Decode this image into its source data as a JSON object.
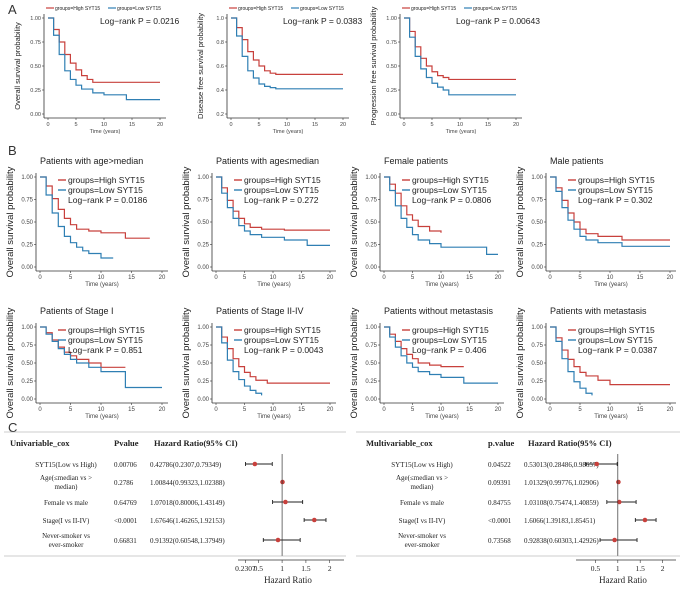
{
  "panel_labels": [
    "A",
    "B",
    "C"
  ],
  "colors": {
    "high": "#c8403c",
    "low": "#2f7fb3",
    "forest_dot": "#c8403c",
    "ci_line": "#222222"
  },
  "legend": {
    "high": "groups=High SYT15",
    "low": "groups=Low SYT15"
  },
  "xlabel": "Time (years)",
  "chart_data": [
    {
      "type": "line",
      "panel": "A",
      "ylabel": "Overall survival probability",
      "pvalue": "Log−rank P = 0.0216",
      "xticks": [
        "0",
        "5",
        "10",
        "15",
        "20"
      ],
      "yticks": [
        "0.00",
        "0.25",
        "0.50",
        "0.75",
        "1.00"
      ],
      "xlim": [
        0,
        20
      ],
      "ylim": [
        0,
        1
      ],
      "series": [
        {
          "name": "groups=High SYT15",
          "x": [
            0,
            1,
            2,
            3,
            4,
            5,
            6,
            7,
            8,
            10,
            13,
            20
          ],
          "y": [
            1,
            0.88,
            0.75,
            0.62,
            0.53,
            0.46,
            0.4,
            0.36,
            0.33,
            0.33,
            0.33,
            0.33
          ]
        },
        {
          "name": "groups=Low SYT15",
          "x": [
            0,
            1,
            2,
            3,
            4,
            5,
            6,
            8,
            10,
            14,
            20
          ],
          "y": [
            1,
            0.82,
            0.62,
            0.45,
            0.36,
            0.3,
            0.26,
            0.22,
            0.2,
            0.15,
            0.15
          ]
        }
      ]
    },
    {
      "type": "line",
      "panel": "A",
      "ylabel": "Disease free survival probability",
      "pvalue": "Log−rank P = 0.0383",
      "xticks": [
        "0",
        "5",
        "10",
        "15",
        "20"
      ],
      "yticks": [
        "0.2",
        "0.4",
        "0.6",
        "0.8",
        "1.0"
      ],
      "xlim": [
        0,
        20
      ],
      "ylim": [
        0.2,
        1
      ],
      "series": [
        {
          "name": "groups=High SYT15",
          "x": [
            0,
            1,
            2,
            3,
            4,
            5,
            6,
            7,
            8,
            10,
            20
          ],
          "y": [
            1,
            0.92,
            0.82,
            0.72,
            0.65,
            0.6,
            0.56,
            0.54,
            0.53,
            0.53,
            0.53
          ]
        },
        {
          "name": "groups=Low SYT15",
          "x": [
            0,
            1,
            2,
            3,
            4,
            5,
            6,
            7,
            8,
            10,
            20
          ],
          "y": [
            1,
            0.85,
            0.68,
            0.56,
            0.5,
            0.45,
            0.43,
            0.42,
            0.41,
            0.41,
            0.41
          ]
        }
      ]
    },
    {
      "type": "line",
      "panel": "A",
      "ylabel": "Progression free survival probability",
      "pvalue": "Log−rank P = 0.00643",
      "xticks": [
        "0",
        "5",
        "10",
        "15",
        "20"
      ],
      "yticks": [
        "0.00",
        "0.25",
        "0.50",
        "0.75",
        "1.00"
      ],
      "xlim": [
        0,
        20
      ],
      "ylim": [
        0,
        1
      ],
      "series": [
        {
          "name": "groups=High SYT15",
          "x": [
            0,
            1,
            2,
            3,
            4,
            5,
            6,
            7,
            8,
            12,
            20
          ],
          "y": [
            1,
            0.86,
            0.7,
            0.58,
            0.5,
            0.44,
            0.4,
            0.38,
            0.36,
            0.36,
            0.36
          ]
        },
        {
          "name": "groups=Low SYT15",
          "x": [
            0,
            1,
            2,
            3,
            4,
            5,
            6,
            7,
            8,
            12,
            20
          ],
          "y": [
            1,
            0.8,
            0.6,
            0.47,
            0.38,
            0.32,
            0.28,
            0.25,
            0.2,
            0.2,
            0.2
          ]
        }
      ]
    },
    {
      "type": "line",
      "panel": "B",
      "title": "Patients with age>median",
      "ylabel": "Overall survival probability",
      "pvalue": "Log−rank P = 0.0186",
      "xticks": [
        "0",
        "5",
        "10",
        "15",
        "20"
      ],
      "yticks": [
        "0.00",
        "0.25",
        "0.50",
        "0.75",
        "1.00"
      ],
      "xlim": [
        0,
        20
      ],
      "ylim": [
        0,
        1
      ],
      "series": [
        {
          "name": "groups=High SYT15",
          "x": [
            0,
            1,
            2,
            3,
            4,
            5,
            6,
            8,
            10,
            14,
            18
          ],
          "y": [
            1,
            0.9,
            0.76,
            0.64,
            0.54,
            0.47,
            0.42,
            0.4,
            0.38,
            0.32,
            0.32
          ]
        },
        {
          "name": "groups=Low SYT15",
          "x": [
            0,
            1,
            2,
            3,
            4,
            5,
            6,
            7,
            8,
            10,
            12
          ],
          "y": [
            1,
            0.8,
            0.6,
            0.45,
            0.34,
            0.27,
            0.22,
            0.18,
            0.15,
            0.1,
            0.1
          ]
        }
      ]
    },
    {
      "type": "line",
      "panel": "B",
      "title": "Patients with age≤median",
      "ylabel": "Overall survival probability",
      "pvalue": "Log−rank P = 0.272",
      "xticks": [
        "0",
        "5",
        "10",
        "15",
        "20"
      ],
      "yticks": [
        "0.00",
        "0.25",
        "0.50",
        "0.75",
        "1.00"
      ],
      "xlim": [
        0,
        20
      ],
      "ylim": [
        0,
        1
      ],
      "series": [
        {
          "name": "groups=High SYT15",
          "x": [
            0,
            1,
            2,
            3,
            4,
            5,
            6,
            8,
            12,
            20
          ],
          "y": [
            1,
            0.88,
            0.74,
            0.62,
            0.54,
            0.48,
            0.44,
            0.42,
            0.41,
            0.41
          ]
        },
        {
          "name": "groups=Low SYT15",
          "x": [
            0,
            1,
            2,
            3,
            4,
            5,
            6,
            8,
            12,
            16,
            20
          ],
          "y": [
            1,
            0.82,
            0.66,
            0.54,
            0.46,
            0.4,
            0.36,
            0.33,
            0.3,
            0.24,
            0.24
          ]
        }
      ]
    },
    {
      "type": "line",
      "panel": "B",
      "title": "Female patients",
      "ylabel": "Overall survival probability",
      "pvalue": "Log−rank P = 0.0806",
      "xticks": [
        "0",
        "5",
        "10",
        "15",
        "20"
      ],
      "yticks": [
        "0.00",
        "0.25",
        "0.50",
        "0.75",
        "1.00"
      ],
      "xlim": [
        0,
        20
      ],
      "ylim": [
        0,
        1
      ],
      "series": [
        {
          "name": "groups=High SYT15",
          "x": [
            0,
            1,
            2,
            3,
            4,
            5,
            6,
            8,
            10
          ],
          "y": [
            1,
            0.92,
            0.82,
            0.68,
            0.58,
            0.52,
            0.45,
            0.4,
            0.38
          ]
        },
        {
          "name": "groups=Low SYT15",
          "x": [
            0,
            1,
            2,
            3,
            4,
            5,
            6,
            8,
            10,
            18,
            20
          ],
          "y": [
            1,
            0.85,
            0.68,
            0.54,
            0.44,
            0.36,
            0.3,
            0.26,
            0.22,
            0.14,
            0.14
          ]
        }
      ]
    },
    {
      "type": "line",
      "panel": "B",
      "title": "Male patients",
      "ylabel": "Overall survival probability",
      "pvalue": "Log−rank P = 0.302",
      "xticks": [
        "0",
        "5",
        "10",
        "15",
        "20"
      ],
      "yticks": [
        "0.00",
        "0.25",
        "0.50",
        "0.75",
        "1.00"
      ],
      "xlim": [
        0,
        20
      ],
      "ylim": [
        0,
        1
      ],
      "series": [
        {
          "name": "groups=High SYT15",
          "x": [
            0,
            1,
            2,
            3,
            4,
            5,
            6,
            8,
            12,
            20
          ],
          "y": [
            1,
            0.88,
            0.74,
            0.6,
            0.5,
            0.42,
            0.37,
            0.34,
            0.3,
            0.3
          ]
        },
        {
          "name": "groups=Low SYT15",
          "x": [
            0,
            1,
            2,
            3,
            4,
            5,
            6,
            8,
            12,
            20
          ],
          "y": [
            1,
            0.84,
            0.66,
            0.52,
            0.42,
            0.34,
            0.3,
            0.27,
            0.23,
            0.23
          ]
        }
      ]
    },
    {
      "type": "line",
      "panel": "B",
      "title": "Patients of Stage I",
      "ylabel": "Overall survival probability",
      "pvalue": "Log−rank P = 0.851",
      "xticks": [
        "0",
        "5",
        "10",
        "15",
        "20"
      ],
      "yticks": [
        "0.00",
        "0.25",
        "0.50",
        "0.75",
        "1.00"
      ],
      "xlim": [
        0,
        20
      ],
      "ylim": [
        0,
        1
      ],
      "series": [
        {
          "name": "groups=High SYT15",
          "x": [
            0,
            1,
            2,
            3,
            4,
            5,
            6,
            8,
            10,
            14
          ],
          "y": [
            1,
            0.92,
            0.82,
            0.72,
            0.65,
            0.6,
            0.55,
            0.5,
            0.44,
            0.44
          ]
        },
        {
          "name": "groups=Low SYT15",
          "x": [
            0,
            1,
            2,
            3,
            4,
            5,
            6,
            8,
            10,
            14,
            20
          ],
          "y": [
            1,
            0.9,
            0.8,
            0.7,
            0.62,
            0.55,
            0.5,
            0.44,
            0.38,
            0.16,
            0.16
          ]
        }
      ]
    },
    {
      "type": "line",
      "panel": "B",
      "title": "Patients of Stage II-IV",
      "ylabel": "Overall survival probability",
      "pvalue": "Log−rank P = 0.0043",
      "xticks": [
        "0",
        "5",
        "10",
        "15",
        "20"
      ],
      "yticks": [
        "0.00",
        "0.25",
        "0.50",
        "0.75",
        "1.00"
      ],
      "xlim": [
        0,
        20
      ],
      "ylim": [
        0,
        1
      ],
      "series": [
        {
          "name": "groups=High SYT15",
          "x": [
            0,
            1,
            2,
            3,
            4,
            5,
            6,
            7,
            9,
            20
          ],
          "y": [
            1,
            0.86,
            0.7,
            0.56,
            0.45,
            0.37,
            0.31,
            0.26,
            0.22,
            0.22
          ]
        },
        {
          "name": "groups=Low SYT15",
          "x": [
            0,
            1,
            2,
            3,
            4,
            5,
            6,
            7,
            8
          ],
          "y": [
            1,
            0.78,
            0.54,
            0.38,
            0.27,
            0.18,
            0.12,
            0.08,
            0.05
          ]
        }
      ]
    },
    {
      "type": "line",
      "panel": "B",
      "title": "Patients without metastasis",
      "ylabel": "Overall survival probability",
      "pvalue": "Log−rank P = 0.406",
      "xticks": [
        "0",
        "5",
        "10",
        "15",
        "20"
      ],
      "yticks": [
        "0.00",
        "0.25",
        "0.50",
        "0.75",
        "1.00"
      ],
      "xlim": [
        0,
        20
      ],
      "ylim": [
        0,
        1
      ],
      "series": [
        {
          "name": "groups=High SYT15",
          "x": [
            0,
            1,
            2,
            3,
            4,
            5,
            6,
            8,
            10,
            14
          ],
          "y": [
            1,
            0.9,
            0.8,
            0.7,
            0.62,
            0.56,
            0.5,
            0.47,
            0.45,
            0.45
          ]
        },
        {
          "name": "groups=Low SYT15",
          "x": [
            0,
            1,
            2,
            3,
            4,
            5,
            6,
            8,
            10,
            14,
            20
          ],
          "y": [
            1,
            0.86,
            0.72,
            0.6,
            0.5,
            0.44,
            0.38,
            0.34,
            0.3,
            0.22,
            0.22
          ]
        }
      ]
    },
    {
      "type": "line",
      "panel": "B",
      "title": "Patients with metastasis",
      "ylabel": "Overall survival probability",
      "pvalue": "Log−rank P = 0.0387",
      "xticks": [
        "0",
        "5",
        "10",
        "15",
        "20"
      ],
      "yticks": [
        "0.00",
        "0.25",
        "0.50",
        "0.75",
        "1.00"
      ],
      "xlim": [
        0,
        20
      ],
      "ylim": [
        0,
        1
      ],
      "series": [
        {
          "name": "groups=High SYT15",
          "x": [
            0,
            1,
            2,
            3,
            4,
            5,
            6,
            8,
            10,
            20
          ],
          "y": [
            1,
            0.85,
            0.68,
            0.55,
            0.45,
            0.37,
            0.32,
            0.26,
            0.2,
            0.2
          ]
        },
        {
          "name": "groups=Low SYT15",
          "x": [
            0,
            1,
            2,
            3,
            4,
            5,
            6,
            7
          ],
          "y": [
            1,
            0.8,
            0.56,
            0.38,
            0.24,
            0.15,
            0.08,
            0.05
          ]
        }
      ]
    },
    {
      "type": "table",
      "panel": "C",
      "title": "Univariable_cox",
      "xlabel": "Hazard Ratio",
      "headers": [
        "Univariable_cox",
        "Pvalue",
        "Hazard Ratio(95% CI)"
      ],
      "xticks": [
        "0.2307",
        "0.5",
        "1",
        "1.5",
        "2"
      ],
      "xlim": [
        0.2,
        2.3
      ],
      "rows": [
        {
          "label": [
            "SYT15(Low vs High)"
          ],
          "pvalue": "0.00706",
          "hr_text": "0.42786(0.2307,0.79349)",
          "hr": 0.42786,
          "lo": 0.2307,
          "hi": 0.79349
        },
        {
          "label": [
            "Age(≤median vs >",
            "median)"
          ],
          "pvalue": "0.2786",
          "hr_text": "1.00844(0.99323,1.02388)",
          "hr": 1.00844,
          "lo": 0.99323,
          "hi": 1.02388
        },
        {
          "label": [
            "Female vs male"
          ],
          "pvalue": "0.64769",
          "hr_text": "1.07018(0.80006,1.43149)",
          "hr": 1.07018,
          "lo": 0.80006,
          "hi": 1.43149
        },
        {
          "label": [
            "Stage(I vs II-IV)"
          ],
          "pvalue": "<0.0001",
          "hr_text": "1.67646(1.46265,1.92153)",
          "hr": 1.67646,
          "lo": 1.46265,
          "hi": 1.92153
        },
        {
          "label": [
            "Never-smoker vs",
            "ever-smoker"
          ],
          "pvalue": "0.66831",
          "hr_text": "0.91392(0.60548,1.37949)",
          "hr": 0.91392,
          "lo": 0.60548,
          "hi": 1.37949
        }
      ]
    },
    {
      "type": "table",
      "panel": "C",
      "title": "Multivariable_cox",
      "xlabel": "Hazard Ratio",
      "headers": [
        "Multivariable_cox",
        "p.value",
        "Hazard Ratio(95% CI)"
      ],
      "xticks": [
        "0.5",
        "1",
        "1.5",
        "2"
      ],
      "xlim": [
        0.2,
        2.3
      ],
      "rows": [
        {
          "label": [
            "SYT15(Low vs High)"
          ],
          "pvalue": "0.04522",
          "hr_text": "0.53013(0.28486,0.98657)",
          "hr": 0.53013,
          "lo": 0.28486,
          "hi": 0.98657
        },
        {
          "label": [
            "Age(≤median vs >",
            "median)"
          ],
          "pvalue": "0.09391",
          "hr_text": "1.01329(0.99776,1.02906)",
          "hr": 1.01329,
          "lo": 0.99776,
          "hi": 1.02906
        },
        {
          "label": [
            "Female vs male"
          ],
          "pvalue": "0.84755",
          "hr_text": "1.03108(0.75474,1.40859)",
          "hr": 1.03108,
          "lo": 0.75474,
          "hi": 1.40859
        },
        {
          "label": [
            "Stage(I vs II-IV)"
          ],
          "pvalue": "<0.0001",
          "hr_text": "1.6066(1.39183,1.85451)",
          "hr": 1.6066,
          "lo": 1.39183,
          "hi": 1.85451
        },
        {
          "label": [
            "Never-smoker vs",
            "ever-smoker"
          ],
          "pvalue": "0.73568",
          "hr_text": "0.92838(0.60303,1.42926)",
          "hr": 0.92838,
          "lo": 0.60303,
          "hi": 1.42926
        }
      ]
    }
  ]
}
